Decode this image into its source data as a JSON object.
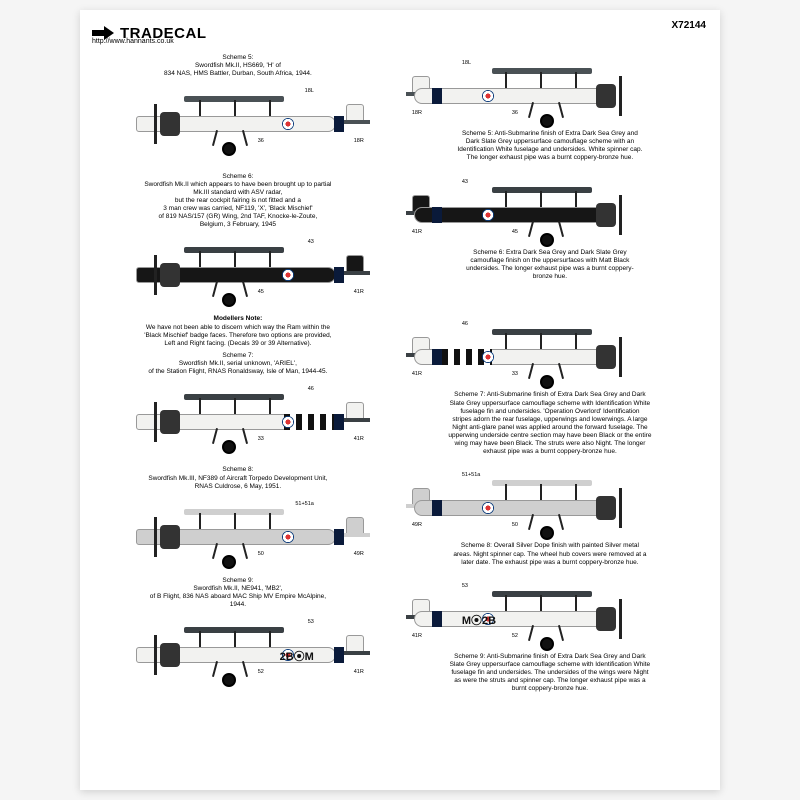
{
  "brand": "TRADECAL",
  "sku": "X72144",
  "url": "http://www.hannants.co.uk",
  "colors": {
    "white": "#f2f2f0",
    "darkSeaGrey": "#4a5155",
    "slateGrey": "#3a4044",
    "night": "#161616",
    "silver": "#cfcfcf",
    "band": "#0a1a3a"
  },
  "schemes": [
    {
      "id": 5,
      "leftCap": "Scheme 5:\nSwordfish Mk.II, HS669, 'H' of\n834 NAS, HMS Battler, Durban, South Africa, 1944.",
      "rightCap": "Scheme 5: Anti-Submarine finish of Extra Dark Sea Grey and\nDark Slate Grey uppersurface camouflage scheme with an\nIdentification White fuselage and undersides. White spinner cap.\nThe longer exhaust pipe was a burnt coppery-bronze hue.",
      "topColor": "#4a5155",
      "bodyColor": "#f2f2f0",
      "tailColor": "#f2f2f0",
      "stripes": false,
      "callouts": [
        "18R",
        "18L",
        "36",
        "56 or 57",
        "58",
        "37",
        "17"
      ]
    },
    {
      "id": 6,
      "leftCap": "Scheme 6:\nSwordfish Mk.II which appears to have been brought up to partial\nMk.III standard with ASV radar,\nbut the rear cockpit fairing is not fitted and a\n3 man crew was carried, NF119, 'X', 'Black Mischief'\nof 819 NAS/157 (GR) Wing, 2nd TAF, Knocke-le-Zoute,\nBelgium, 3 February, 1945",
      "rightCap": "Scheme 6: Extra Dark Sea Grey and Dark Slate Grey\ncamouflage finish on the uppersurfaces with Matt Black\nundersides. The longer exhaust pipe was a burnt coppery-\nbronze hue.",
      "topColor": "#3a4044",
      "bodyColor": "#161616",
      "tailColor": "#161616",
      "stripes": false,
      "callouts": [
        "41R",
        "43",
        "45",
        "40",
        "42",
        "44",
        "39",
        "43L",
        "33",
        "35"
      ]
    },
    {
      "id": 7,
      "leftCap": "Scheme 7:\nSwordfish Mk.II, serial unknown, 'ARIEL',\nof the Station Flight, RNAS Ronaldsway, Isle of Man, 1944-45.",
      "rightCap": "Scheme 7: Anti-Submarine finish of Extra Dark Sea Grey and Dark\nSlate Grey uppersurface camouflage scheme with Identification White\nfuselage fin and undersides. 'Operation Overlord' Identification\nstripes adorn the rear fuselage, upperwings and lowerwings. A large\nNight anti-glare panel was applied around the forward fuselage. The\nupperwing underside centre section may have been Black or the entire\nwing may have been Black. The struts were also Night. The longer\nexhaust pipe was a burnt coppery-bronze hue.",
      "topColor": "#3a4044",
      "bodyColor": "#f2f2f0",
      "tailColor": "#f2f2f0",
      "stripes": true,
      "callouts": [
        "41R",
        "46",
        "33",
        "47",
        "41L",
        "35"
      ],
      "noteTitle": "Modellers Note:",
      "note": "We have not been able to discern which way the Ram within the\n'Black Mischief' badge faces. Therefore two options are provided,\nLeft and Right facing. (Decals 39 or 39 Alternative)."
    },
    {
      "id": 8,
      "leftCap": "Scheme 8:\nSwordfish Mk.III, NF389 of Aircraft Torpedo Development Unit,\nRNAS Culdrose, 6 May, 1951.",
      "rightCap": "Scheme 8: Overall Silver Dope finish with painted Silver metal\nareas. Night spinner cap. The wheel hub covers were removed at a\nlater date. The exhaust pipe was a burnt coppery-bronze hue.",
      "topColor": "#cfcfcf",
      "bodyColor": "#cfcfcf",
      "tailColor": "#cfcfcf",
      "stripes": false,
      "callouts": [
        "49R",
        "51+51a",
        "50",
        "48",
        "51+51a+51b",
        "49L"
      ]
    },
    {
      "id": 9,
      "leftCap": "Scheme 9:\nSwordfish Mk.II, NE941, 'MB2',\nof B Flight, 836 NAS aboard MAC Ship MV Empire McAlpine,\n1944.",
      "rightCap": "Scheme 9: Anti-Submarine finish of Extra Dark Sea Grey and Dark\nSlate Grey uppersurface camouflage scheme with Identification White\nfuselage fin and undersides. The undersides of the wings were Night\nas were the struts and spinner cap. The longer exhaust pipe was a\nburnt coppery-bronze hue.",
      "topColor": "#3a4044",
      "bodyColor": "#f2f2f0",
      "tailColor": "#f2f2f0",
      "stripes": false,
      "callouts": [
        "41R",
        "53",
        "52",
        "54",
        "41L",
        "35"
      ],
      "codesL": "2B⦿M",
      "codesR": "M⦿2B"
    }
  ]
}
